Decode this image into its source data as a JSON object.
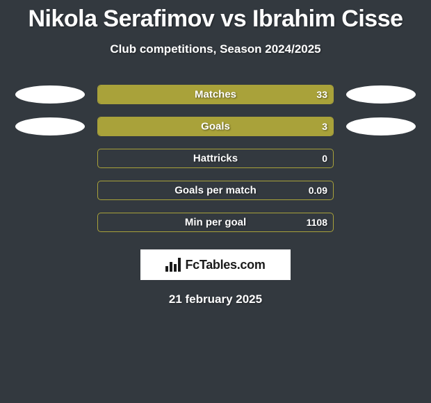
{
  "title": "Nikola Serafimov vs Ibrahim Cisse",
  "subtitle": "Club competitions, Season 2024/2025",
  "date": "21 february 2025",
  "branding": {
    "text": "FcTables.com"
  },
  "accent_color": "#a9a23a",
  "track_border_color": "#a9a23a",
  "background_color": "#33393f",
  "ellipse_color": "#ffffff",
  "logo_bg": "#ffffff",
  "logo_text_color": "#1a1a1a",
  "bars": [
    {
      "label": "Matches",
      "value": "33",
      "fill_pct": 100,
      "left_ellipse": true,
      "right_ellipse": true
    },
    {
      "label": "Goals",
      "value": "3",
      "fill_pct": 100,
      "left_ellipse": true,
      "right_ellipse": true
    },
    {
      "label": "Hattricks",
      "value": "0",
      "fill_pct": 0,
      "left_ellipse": false,
      "right_ellipse": false
    },
    {
      "label": "Goals per match",
      "value": "0.09",
      "fill_pct": 0,
      "left_ellipse": false,
      "right_ellipse": false
    },
    {
      "label": "Min per goal",
      "value": "1108",
      "fill_pct": 0,
      "left_ellipse": false,
      "right_ellipse": false
    }
  ]
}
